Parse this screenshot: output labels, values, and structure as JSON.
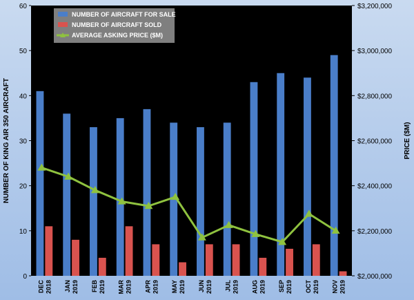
{
  "chart_data": {
    "type": "bar",
    "categories": [
      [
        "DEC",
        "2018"
      ],
      [
        "JAN",
        "2019"
      ],
      [
        "FEB",
        "2019"
      ],
      [
        "MAR",
        "2019"
      ],
      [
        "APR",
        "2019"
      ],
      [
        "MAY",
        "2019"
      ],
      [
        "JUN",
        "2019"
      ],
      [
        "JUL",
        "2019"
      ],
      [
        "AUG",
        "2019"
      ],
      [
        "SEP",
        "2019"
      ],
      [
        "OCT",
        "2019"
      ],
      [
        "NOV",
        "2019"
      ]
    ],
    "series": [
      {
        "name": "NUMBER OF AIRCRAFT FOR SALE",
        "kind": "bar",
        "axis": "left",
        "color": "#4a7ec9",
        "values": [
          41,
          36,
          33,
          35,
          37,
          34,
          33,
          34,
          43,
          45,
          44,
          49
        ]
      },
      {
        "name": "NUMBER OF AIRCRAFT SOLD",
        "kind": "bar",
        "axis": "left",
        "color": "#d9534f",
        "values": [
          11,
          8,
          4,
          11,
          7,
          3,
          7,
          7,
          4,
          6,
          7,
          1
        ]
      },
      {
        "name": "AVERAGE ASKING PRICE ($M)",
        "kind": "line",
        "axis": "right",
        "color": "#8fc23f",
        "values": [
          2480000,
          2440000,
          2380000,
          2330000,
          2310000,
          2350000,
          2170000,
          2225000,
          2185000,
          2150000,
          2275000,
          2200000
        ]
      }
    ],
    "ylabel": "NUMBER OF KING AIR 350 AIRCRAFT",
    "y2label": "PRICE ($M)",
    "ylim": [
      0,
      60
    ],
    "yticks": [
      0,
      10,
      20,
      30,
      40,
      50,
      60
    ],
    "y2lim": [
      2000000,
      3200000
    ],
    "y2ticks": [
      "$2,000,000",
      "$2,200,000",
      "$2,400,000",
      "$2,600,000",
      "$2,800,000",
      "$3,000,000",
      "$3,200,000"
    ],
    "y2tick_values": [
      2000000,
      2200000,
      2400000,
      2600000,
      2800000,
      3000000,
      3200000
    ],
    "legend": "top-left",
    "grid": false,
    "colors": {
      "plot_background": "#000000",
      "legend_background": "#7f7f7f"
    }
  }
}
